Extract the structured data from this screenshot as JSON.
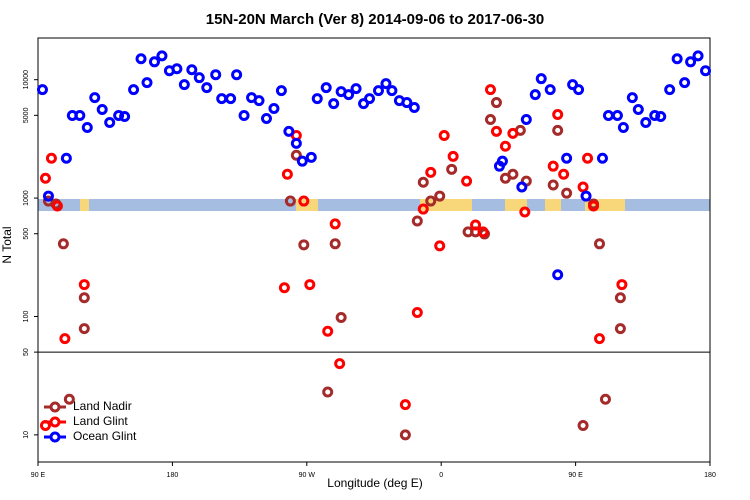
{
  "chart_data": {
    "type": "scatter",
    "title": "15N-20N March (Ver 8)   2014-09-06 to 2017-06-30",
    "x_label": "Longitude (deg E)",
    "y_label": "N Total",
    "log_y": true,
    "xlim": [
      90,
      540
    ],
    "ylim": [
      5.9,
      22500
    ],
    "xticks": [
      {
        "value": 90,
        "label": "90 E"
      },
      {
        "value": 180,
        "label": "180"
      },
      {
        "value": 270,
        "label": "90 W"
      },
      {
        "value": 360,
        "label": "0"
      },
      {
        "value": 450,
        "label": "90 E"
      },
      {
        "value": 540,
        "label": "180"
      }
    ],
    "yticks": [
      10,
      50,
      100,
      500,
      1000,
      5000,
      10000
    ],
    "hline": 50,
    "legend": "bottom-left",
    "series": [
      {
        "name": "Land Nadir",
        "color": "#a52a2a",
        "x": [
          97,
          102,
          107,
          111,
          121,
          121,
          259,
          263,
          268,
          284,
          289,
          293,
          336,
          344,
          348,
          353,
          359,
          367,
          378,
          383,
          389,
          393,
          397,
          403,
          408,
          413,
          417,
          435,
          438,
          444,
          455,
          462,
          466,
          470,
          480,
          480
        ],
        "values": [
          944,
          891,
          411,
          20,
          144,
          79,
          944,
          2300,
          403,
          23,
          411,
          98,
          10,
          641,
          1360,
          944,
          1040,
          1750,
          518,
          518,
          498,
          4610,
          6410,
          1470,
          1590,
          3730,
          1390,
          1290,
          3730,
          1100,
          12,
          891,
          411,
          20,
          144,
          79
        ]
      },
      {
        "name": "Land Glint",
        "color": "#ff0000",
        "x": [
          95,
          95,
          99,
          103,
          108,
          121,
          255,
          257,
          263,
          268,
          272,
          284,
          289,
          292,
          336,
          344,
          348,
          353,
          359,
          362,
          368,
          377,
          383,
          388,
          393,
          397,
          403,
          408,
          416,
          435,
          438,
          442,
          455,
          458,
          462,
          466,
          481
        ],
        "values": [
          12,
          1470,
          2170,
          857,
          65,
          186,
          175,
          1590,
          3380,
          944,
          186,
          75,
          605,
          40,
          18,
          108,
          808,
          1650,
          395,
          3380,
          2250,
          1390,
          593,
          518,
          8240,
          3660,
          2740,
          3520,
          763,
          1860,
          5080,
          1590,
          1240,
          2170,
          857,
          65,
          186
        ]
      },
      {
        "name": "Ocean Glint",
        "color": "#0000ff",
        "x": [
          93,
          97,
          109,
          113,
          118,
          123,
          128,
          133,
          138,
          144,
          148,
          154,
          159,
          163,
          168,
          173,
          178,
          183,
          188,
          193,
          198,
          203,
          209,
          213,
          219,
          223,
          228,
          233,
          238,
          243,
          248,
          253,
          258,
          263,
          267,
          273,
          277,
          283,
          288,
          293,
          298,
          303,
          308,
          312,
          318,
          323,
          327,
          332,
          337,
          342,
          399,
          401,
          414,
          417,
          423,
          427,
          433,
          438,
          444,
          448,
          452,
          457,
          468,
          472,
          478,
          482,
          488,
          492,
          497,
          503,
          507,
          513,
          518,
          523,
          527,
          532,
          537
        ],
        "values": [
          8240,
          1040,
          2170,
          4980,
          4980,
          3950,
          7060,
          5600,
          4350,
          4980,
          4890,
          8240,
          15020,
          9440,
          14160,
          15900,
          11900,
          12380,
          9080,
          12130,
          10400,
          8570,
          11020,
          6920,
          6920,
          11020,
          4980,
          7060,
          6660,
          4700,
          5710,
          8080,
          3660,
          2900,
          2050,
          2210,
          6920,
          8570,
          6280,
          7930,
          7480,
          8400,
          6280,
          6920,
          8080,
          9260,
          8080,
          6660,
          6410,
          5820,
          1860,
          2050,
          1240,
          4610,
          7480,
          10200,
          8240,
          225,
          2170,
          9080,
          8240,
          1040,
          2170,
          4980,
          4980,
          3950,
          7060,
          5600,
          4350,
          4980,
          4890,
          8240,
          15020,
          9440,
          14160,
          15900,
          11900
        ]
      }
    ]
  }
}
